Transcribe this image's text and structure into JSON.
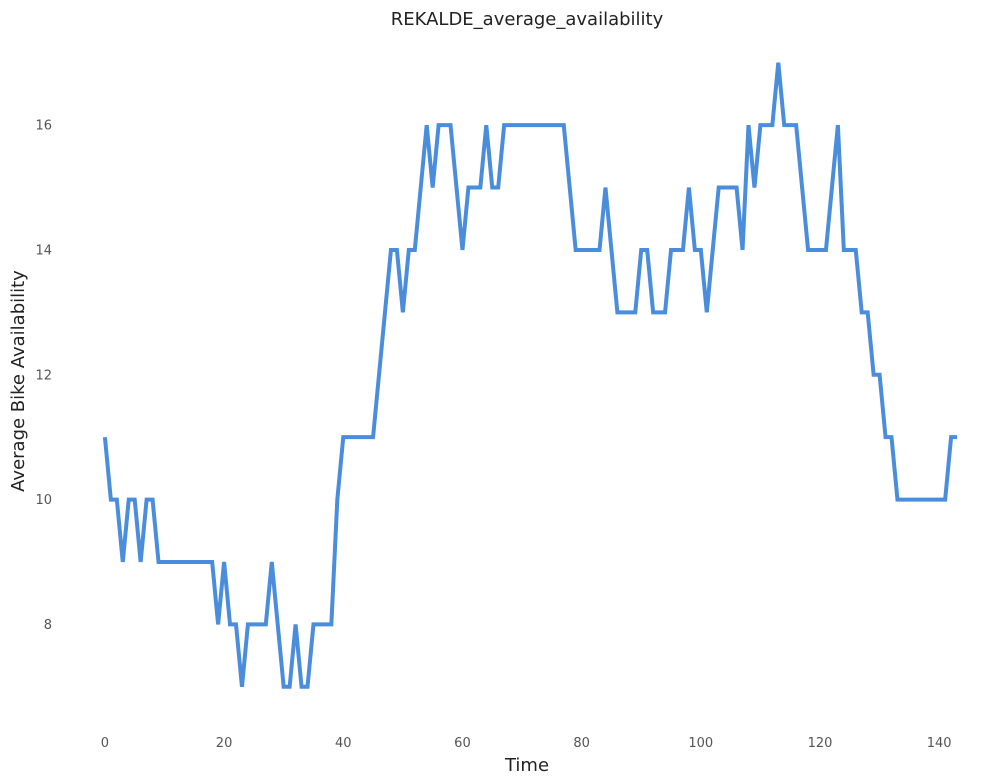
{
  "chart_data": {
    "type": "line",
    "title": "REKALDE_average_availability",
    "xlabel": "Time",
    "ylabel": "Average Bike Availability",
    "xlim": [
      -2.5,
      144.5
    ],
    "ylim": [
      6.5,
      17.3
    ],
    "xticks": [
      0,
      20,
      40,
      60,
      80,
      100,
      120,
      140
    ],
    "yticks": [
      8,
      10,
      12,
      14,
      16
    ],
    "grid": false,
    "line_color": "#4a8ddc",
    "series": [
      {
        "x": [
          0,
          1,
          2,
          3,
          4,
          5,
          6,
          7,
          8,
          9,
          10,
          11,
          12,
          13,
          14,
          15,
          16,
          17,
          18,
          19,
          20,
          21,
          22,
          23,
          24,
          25,
          26,
          27,
          28,
          29,
          30,
          31,
          32,
          33,
          34,
          35,
          36,
          37,
          38,
          39,
          40,
          41,
          42,
          43,
          44,
          45,
          46,
          47,
          48,
          49,
          50,
          51,
          52,
          53,
          54,
          55,
          56,
          57,
          58,
          59,
          60,
          61,
          62,
          63,
          64,
          65,
          66,
          67,
          68,
          69,
          70,
          71,
          72,
          73,
          74,
          75,
          76,
          77,
          78,
          79,
          80,
          81,
          82,
          83,
          84,
          85,
          86,
          87,
          88,
          89,
          90,
          91,
          92,
          93,
          94,
          95,
          96,
          97,
          98,
          99,
          100,
          101,
          102,
          103,
          104,
          105,
          106,
          107,
          108,
          109,
          110,
          111,
          112,
          113,
          114,
          115,
          116,
          117,
          118,
          119,
          120,
          121,
          122,
          123,
          124,
          125,
          126,
          127,
          128,
          129,
          130,
          131,
          132,
          133,
          134,
          135,
          136,
          137,
          138,
          139,
          140,
          141,
          142,
          143
        ],
        "y": [
          11,
          10,
          10,
          9,
          10,
          10,
          9,
          10,
          10,
          9,
          9,
          9,
          9,
          9,
          9,
          9,
          9,
          9,
          9,
          8,
          9,
          8,
          8,
          7,
          8,
          8,
          8,
          8,
          9,
          8,
          7,
          7,
          8,
          7,
          7,
          8,
          8,
          8,
          8,
          10,
          11,
          11,
          11,
          11,
          11,
          11,
          12,
          13,
          14,
          14,
          13,
          14,
          14,
          15,
          16,
          15,
          16,
          16,
          16,
          15,
          14,
          15,
          15,
          15,
          16,
          15,
          15,
          16,
          16,
          16,
          16,
          16,
          16,
          16,
          16,
          16,
          16,
          16,
          15,
          14,
          14,
          14,
          14,
          14,
          15,
          14,
          13,
          13,
          13,
          13,
          14,
          14,
          13,
          13,
          13,
          14,
          14,
          14,
          15,
          14,
          14,
          13,
          14,
          15,
          15,
          15,
          15,
          14,
          16,
          15,
          16,
          16,
          16,
          17,
          16,
          16,
          16,
          15,
          14,
          14,
          14,
          14,
          15,
          16,
          14,
          14,
          14,
          13,
          13,
          12,
          12,
          11,
          11,
          10,
          10,
          10,
          10,
          10,
          10,
          10,
          10,
          10,
          11,
          11
        ]
      }
    ]
  }
}
